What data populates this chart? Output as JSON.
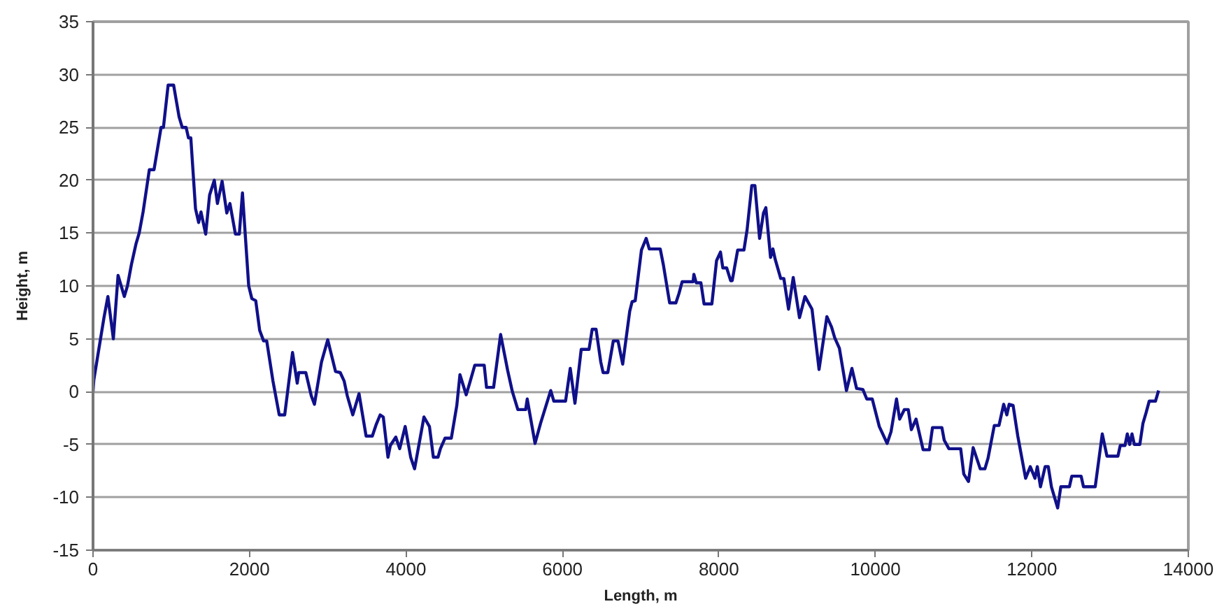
{
  "chart_data": {
    "type": "line",
    "xlabel": "Length, m",
    "ylabel": "Height, m",
    "x": [
      0,
      10,
      140,
      190,
      260,
      320,
      400,
      440,
      490,
      550,
      590,
      640,
      720,
      780,
      870,
      900,
      960,
      1030,
      1100,
      1140,
      1190,
      1220,
      1250,
      1310,
      1350,
      1380,
      1440,
      1490,
      1550,
      1590,
      1650,
      1710,
      1750,
      1820,
      1870,
      1910,
      1990,
      2030,
      2080,
      2130,
      2180,
      2220,
      2300,
      2380,
      2450,
      2550,
      2610,
      2630,
      2720,
      2790,
      2830,
      2920,
      3000,
      3040,
      3100,
      3160,
      3210,
      3250,
      3320,
      3400,
      3490,
      3570,
      3620,
      3670,
      3710,
      3770,
      3800,
      3870,
      3920,
      3990,
      4060,
      4110,
      4230,
      4300,
      4350,
      4410,
      4440,
      4500,
      4580,
      4650,
      4690,
      4770,
      4810,
      4880,
      5000,
      5030,
      5120,
      5210,
      5300,
      5360,
      5430,
      5530,
      5550,
      5650,
      5720,
      5850,
      5890,
      6040,
      6100,
      6160,
      6240,
      6340,
      6380,
      6430,
      6490,
      6520,
      6580,
      6650,
      6710,
      6770,
      6860,
      6890,
      6930,
      7010,
      7070,
      7110,
      7250,
      7290,
      7370,
      7450,
      7490,
      7530,
      7670,
      7680,
      7710,
      7770,
      7810,
      7910,
      7970,
      8020,
      8050,
      8100,
      8150,
      8170,
      8240,
      8320,
      8360,
      8420,
      8460,
      8520,
      8570,
      8600,
      8660,
      8690,
      8720,
      8790,
      8830,
      8890,
      8950,
      9030,
      9100,
      9190,
      9280,
      9380,
      9440,
      9480,
      9540,
      9630,
      9700,
      9760,
      9840,
      9890,
      9960,
      10050,
      10150,
      10200,
      10270,
      10310,
      10370,
      10420,
      10460,
      10520,
      10610,
      10690,
      10730,
      10850,
      10880,
      10940,
      11090,
      11130,
      11190,
      11250,
      11340,
      11400,
      11440,
      11520,
      11580,
      11640,
      11680,
      11710,
      11760,
      11820,
      11920,
      11980,
      12040,
      12070,
      12110,
      12170,
      12210,
      12250,
      12330,
      12370,
      12480,
      12510,
      12630,
      12660,
      12810,
      12900,
      12960,
      13100,
      13130,
      13190,
      13220,
      13250,
      13280,
      13310,
      13340,
      13380,
      13420,
      13460,
      13500,
      13580,
      13620
    ],
    "series": [
      {
        "color": "#10108a",
        "values": [
          0,
          1.1,
          7,
          9,
          5,
          11,
          9,
          10,
          12,
          14,
          15,
          17,
          21,
          21,
          25,
          25,
          29,
          29,
          26,
          25,
          25,
          24,
          24,
          17.3,
          16,
          17,
          14.9,
          18.6,
          20,
          17.8,
          19.9,
          16.9,
          17.8,
          14.9,
          14.9,
          18.8,
          10,
          8.8,
          8.6,
          5.8,
          4.8,
          4.8,
          1,
          -2.2,
          -2.2,
          3.7,
          0.8,
          1.8,
          1.8,
          -0.4,
          -1.2,
          2.8,
          4.9,
          3.7,
          1.9,
          1.8,
          1,
          -0.4,
          -2.2,
          -0.2,
          -4.2,
          -4.2,
          -3.1,
          -2.2,
          -2.4,
          -6.2,
          -5.1,
          -4.3,
          -5.4,
          -3.3,
          -6.2,
          -7.3,
          -2.4,
          -3.3,
          -6.2,
          -6.2,
          -5.4,
          -4.4,
          -4.4,
          -1.3,
          1.6,
          -0.3,
          0.7,
          2.5,
          2.5,
          0.4,
          0.4,
          5.4,
          2,
          0,
          -1.7,
          -1.7,
          -0.7,
          -4.9,
          -3,
          0.1,
          -0.9,
          -0.9,
          2.2,
          -1.1,
          4,
          4,
          5.9,
          5.9,
          2.8,
          1.8,
          1.8,
          4.8,
          4.8,
          2.6,
          7.6,
          8.5,
          8.6,
          13.4,
          14.5,
          13.5,
          13.5,
          12,
          8.4,
          8.4,
          9.3,
          10.4,
          10.4,
          11.1,
          10.3,
          10.3,
          8.3,
          8.3,
          12.4,
          13.2,
          11.7,
          11.7,
          10.5,
          10.5,
          13.4,
          13.4,
          15.3,
          19.5,
          19.5,
          14.5,
          16.9,
          17.4,
          12.7,
          13.5,
          12.5,
          10.7,
          10.7,
          7.8,
          10.8,
          7,
          9,
          7.8,
          2.1,
          7.1,
          6.1,
          5.1,
          4.1,
          0.1,
          2.2,
          0.3,
          0.2,
          -0.7,
          -0.7,
          -3.3,
          -4.9,
          -3.8,
          -0.7,
          -2.6,
          -1.7,
          -1.7,
          -3.6,
          -2.6,
          -5.5,
          -5.5,
          -3.4,
          -3.4,
          -4.6,
          -5.4,
          -5.4,
          -7.8,
          -8.5,
          -5.3,
          -7.3,
          -7.3,
          -6.3,
          -3.2,
          -3.2,
          -1.2,
          -2.2,
          -1.2,
          -1.3,
          -4.2,
          -8.2,
          -7.1,
          -8.2,
          -7.1,
          -9,
          -7.1,
          -7.1,
          -9,
          -11,
          -9,
          -9,
          -8,
          -8,
          -9,
          -9,
          -4,
          -6.1,
          -6.1,
          -5.1,
          -5.1,
          -4,
          -5,
          -4,
          -5,
          -5,
          -5,
          -3,
          -2,
          -0.9,
          -0.9,
          0.1
        ]
      }
    ],
    "xlim": [
      0,
      14000
    ],
    "ylim": [
      -15,
      35
    ],
    "xticks": [
      0,
      2000,
      4000,
      6000,
      8000,
      10000,
      12000,
      14000
    ],
    "yticks": [
      -15,
      -10,
      -5,
      0,
      5,
      10,
      15,
      20,
      25,
      30,
      35
    ],
    "grid": "y",
    "line_style": "solid"
  }
}
